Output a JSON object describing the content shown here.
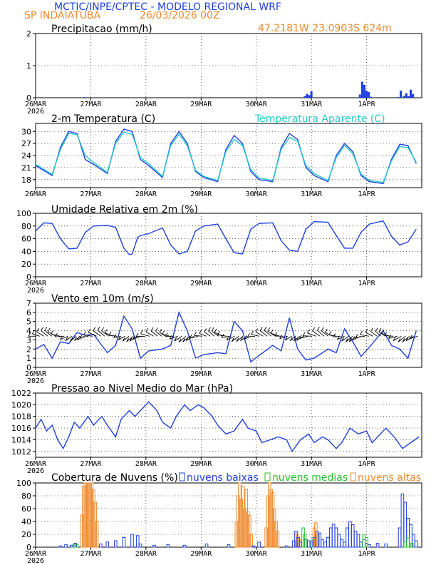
{
  "header": {
    "title": "MCTIC/INPE/CPTEC - MODELO REGIONAL WRF",
    "location": "SP INDAIATUBA",
    "run": "26/03/2026 00Z",
    "coords": "47.2181W 23.0903S 624m"
  },
  "colors": {
    "blue": "#1f3fe0",
    "cyan": "#27c9c9",
    "orange": "#ee8a2e",
    "green": "#22c22a",
    "title": "#1f3fe0",
    "accent": "#ee8a2e"
  },
  "x_ticks": [
    "26MAR",
    "27MAR",
    "28MAR",
    "29MAR",
    "30MAR",
    "31MAR",
    "1APR"
  ],
  "x_year": "2026",
  "chart_data": [
    {
      "type": "bar",
      "title": "Precipitacao (mm/h)",
      "ylim": [
        0,
        2
      ],
      "yticks": [
        0,
        1,
        2
      ],
      "bars_x": [
        0.88,
        4.88,
        4.92,
        4.96,
        5.0,
        5.88,
        5.92,
        5.96,
        6.0,
        6.04,
        6.08,
        6.58,
        6.62,
        6.68,
        6.72,
        6.76,
        6.8,
        6.84
      ],
      "values": [
        0.02,
        0.05,
        0.12,
        0.08,
        0.2,
        0.1,
        0.5,
        0.4,
        0.22,
        0.18,
        0.03,
        0.02,
        0.22,
        0.06,
        0.14,
        0.05,
        0.25,
        0.12
      ]
    },
    {
      "type": "line",
      "title": "2-m Temperatura (C)",
      "legend": [
        "Temperatura Aparente (C)"
      ],
      "ylim": [
        16,
        32
      ],
      "yticks": [
        18,
        21,
        24,
        27,
        30
      ],
      "series": [
        {
          "name": "Temperatura",
          "color": "#1f3fe0",
          "x": [
            0,
            0.3,
            0.45,
            0.6,
            0.75,
            0.9,
            1.05,
            1.3,
            1.45,
            1.6,
            1.75,
            1.9,
            2.05,
            2.3,
            2.45,
            2.6,
            2.75,
            2.9,
            3.05,
            3.3,
            3.45,
            3.6,
            3.75,
            3.9,
            4.05,
            4.3,
            4.45,
            4.6,
            4.75,
            4.9,
            5.05,
            5.3,
            5.45,
            5.6,
            5.75,
            5.9,
            6.05,
            6.3,
            6.45,
            6.6,
            6.75,
            6.9
          ],
          "values": [
            21.5,
            19.0,
            26.0,
            30.0,
            29.5,
            23.0,
            21.8,
            19.5,
            27.5,
            30.6,
            30.0,
            23.0,
            21.5,
            18.5,
            27.0,
            30.0,
            27.0,
            20.0,
            18.5,
            17.5,
            25.5,
            29.0,
            27.0,
            20.0,
            18.0,
            17.5,
            26.0,
            29.5,
            28.0,
            21.0,
            19.0,
            17.5,
            24.0,
            27.0,
            25.0,
            19.0,
            17.5,
            17.0,
            23.0,
            26.8,
            26.5,
            22.0
          ]
        },
        {
          "name": "Temperatura Aparente (C)",
          "color": "#27c9c9",
          "x": [
            0,
            0.3,
            0.45,
            0.6,
            0.75,
            0.9,
            1.05,
            1.3,
            1.45,
            1.6,
            1.75,
            1.9,
            2.05,
            2.3,
            2.45,
            2.6,
            2.75,
            2.9,
            3.05,
            3.3,
            3.45,
            3.6,
            3.75,
            3.9,
            4.05,
            4.3,
            4.45,
            4.6,
            4.75,
            4.9,
            5.05,
            5.3,
            5.45,
            5.6,
            5.75,
            5.9,
            6.05,
            6.3,
            6.45,
            6.6,
            6.75,
            6.9
          ],
          "values": [
            21.8,
            19.3,
            25.5,
            29.5,
            29.2,
            24.0,
            22.3,
            19.8,
            27.0,
            29.8,
            29.3,
            23.5,
            22.0,
            18.8,
            26.5,
            29.3,
            26.5,
            20.3,
            18.8,
            17.8,
            25.0,
            28.0,
            26.5,
            20.5,
            18.4,
            17.8,
            25.5,
            28.5,
            27.5,
            21.5,
            19.5,
            17.8,
            23.5,
            26.5,
            24.5,
            19.4,
            17.8,
            17.3,
            22.6,
            26.2,
            26.0,
            22.3
          ]
        }
      ]
    },
    {
      "type": "line",
      "title": "Umidade Relativa em 2m (%)",
      "ylim": [
        0,
        100
      ],
      "yticks": [
        0,
        20,
        40,
        60,
        80,
        100
      ],
      "series": [
        {
          "name": "Umidade",
          "color": "#1f3fe0",
          "x": [
            0,
            0.15,
            0.3,
            0.45,
            0.6,
            0.75,
            0.9,
            1.05,
            1.3,
            1.45,
            1.6,
            1.7,
            1.75,
            1.85,
            1.9,
            2.05,
            2.3,
            2.45,
            2.6,
            2.75,
            2.9,
            3.05,
            3.3,
            3.45,
            3.6,
            3.75,
            3.9,
            4.05,
            4.3,
            4.45,
            4.6,
            4.75,
            4.9,
            5.05,
            5.3,
            5.45,
            5.6,
            5.75,
            5.9,
            6.05,
            6.3,
            6.45,
            6.6,
            6.75,
            6.9
          ],
          "values": [
            72,
            85,
            84,
            60,
            44,
            45,
            70,
            80,
            81,
            78,
            45,
            35,
            36,
            62,
            65,
            68,
            77,
            50,
            36,
            40,
            72,
            80,
            83,
            60,
            38,
            36,
            75,
            84,
            85,
            57,
            42,
            40,
            75,
            87,
            86,
            65,
            45,
            45,
            70,
            83,
            88,
            64,
            50,
            55,
            75
          ]
        }
      ]
    },
    {
      "type": "line",
      "title": "Vento em 10m (m/s)",
      "ylim": [
        0,
        7
      ],
      "yticks": [
        0,
        1,
        2,
        3,
        4,
        5,
        6,
        7
      ],
      "barb_row_value": 3.4,
      "series": [
        {
          "name": "Vento",
          "color": "#1f3fe0",
          "x": [
            0,
            0.15,
            0.3,
            0.45,
            0.6,
            0.75,
            0.9,
            1.05,
            1.3,
            1.45,
            1.6,
            1.75,
            1.9,
            2.05,
            2.3,
            2.45,
            2.6,
            2.75,
            2.9,
            3.05,
            3.3,
            3.45,
            3.6,
            3.75,
            3.9,
            4.05,
            4.3,
            4.45,
            4.6,
            4.75,
            4.9,
            5.05,
            5.3,
            5.45,
            5.6,
            5.75,
            5.9,
            6.05,
            6.3,
            6.45,
            6.6,
            6.75,
            6.9
          ],
          "values": [
            2.0,
            2.5,
            1.0,
            2.8,
            2.6,
            3.8,
            3.5,
            3.6,
            1.6,
            2.4,
            5.6,
            4.2,
            1.0,
            1.8,
            2.0,
            2.4,
            6.0,
            4.0,
            1.0,
            1.4,
            1.6,
            1.5,
            5.0,
            4.0,
            0.6,
            1.3,
            2.4,
            1.8,
            5.4,
            2.0,
            0.8,
            1.0,
            2.0,
            1.6,
            4.2,
            2.8,
            1.2,
            2.2,
            4.0,
            2.4,
            2.0,
            1.0,
            4.0
          ]
        }
      ]
    },
    {
      "type": "line",
      "title": "Pressao ao Nivel Medio do Mar (hPa)",
      "ylim": [
        1011,
        1022
      ],
      "yticks": [
        1012,
        1014,
        1016,
        1018,
        1020,
        1022
      ],
      "series": [
        {
          "name": "Pressao",
          "color": "#1f3fe0",
          "x": [
            0,
            0.1,
            0.2,
            0.3,
            0.4,
            0.5,
            0.6,
            0.7,
            0.8,
            0.95,
            1.05,
            1.2,
            1.3,
            1.45,
            1.55,
            1.7,
            1.8,
            1.95,
            2.05,
            2.2,
            2.3,
            2.45,
            2.55,
            2.7,
            2.8,
            2.95,
            3.05,
            3.2,
            3.3,
            3.45,
            3.6,
            3.75,
            3.85,
            4.0,
            4.1,
            4.25,
            4.4,
            4.55,
            4.65,
            4.8,
            4.95,
            5.05,
            5.2,
            5.3,
            5.45,
            5.55,
            5.7,
            5.85,
            6.0,
            6.1,
            6.25,
            6.35,
            6.5,
            6.65,
            6.8,
            6.95
          ],
          "values": [
            1016.0,
            1017.5,
            1015.5,
            1016.5,
            1014.0,
            1012.5,
            1014.5,
            1017.0,
            1016.0,
            1018.0,
            1016.5,
            1018.0,
            1016.5,
            1014.5,
            1017.5,
            1019.0,
            1018.0,
            1019.5,
            1020.5,
            1019.0,
            1017.0,
            1016.0,
            1018.0,
            1020.0,
            1019.0,
            1020.0,
            1019.5,
            1018.0,
            1016.5,
            1015.0,
            1015.5,
            1017.5,
            1016.0,
            1015.5,
            1013.5,
            1014.0,
            1014.5,
            1014.0,
            1012.0,
            1014.0,
            1015.0,
            1013.5,
            1014.5,
            1014.0,
            1012.5,
            1013.5,
            1016.0,
            1015.0,
            1015.5,
            1013.5,
            1015.0,
            1016.0,
            1014.5,
            1012.5,
            1013.5,
            1014.5
          ]
        }
      ]
    },
    {
      "type": "bar",
      "title": "Cobertura de Nuvens (%)",
      "legend": [
        "nuvens baixas",
        "nuvens medias",
        "nuvens altas"
      ],
      "ylim": [
        0,
        100
      ],
      "yticks": [
        0,
        20,
        40,
        60,
        80,
        100
      ],
      "series": [
        {
          "name": "nuvens altas",
          "color": "#ee8a2e",
          "x": [
            0.84,
            0.87,
            0.9,
            0.93,
            0.96,
            0.99,
            1.02,
            1.05,
            1.08,
            1.11,
            3.64,
            3.67,
            3.7,
            3.73,
            3.76,
            3.79,
            3.82,
            3.85,
            3.88,
            3.91,
            4.18,
            4.21,
            4.24,
            4.27,
            4.3,
            4.33,
            4.36,
            4.39,
            4.75,
            4.79,
            5.05,
            5.08,
            5.12
          ],
          "values": [
            50,
            95,
            100,
            100,
            100,
            100,
            100,
            90,
            70,
            40,
            40,
            80,
            100,
            75,
            95,
            60,
            90,
            55,
            50,
            20,
            30,
            80,
            100,
            90,
            85,
            60,
            40,
            25,
            20,
            12,
            30,
            38,
            20
          ]
        },
        {
          "name": "nuvens baixas",
          "color": "#1f3fe0",
          "x": [
            0.45,
            0.55,
            0.65,
            0.72,
            1.18,
            1.3,
            1.45,
            1.6,
            1.75,
            1.85,
            1.9,
            2.15,
            2.4,
            2.7,
            3.1,
            3.5,
            3.95,
            4.05,
            4.55,
            4.68,
            4.72,
            4.76,
            4.8,
            4.9,
            4.95,
            5.0,
            5.05,
            5.1,
            5.15,
            5.2,
            5.25,
            5.3,
            5.35,
            5.4,
            5.45,
            5.5,
            5.55,
            5.6,
            5.65,
            5.7,
            5.75,
            5.8,
            5.85,
            5.9,
            5.95,
            6.0,
            6.05,
            6.2,
            6.35,
            6.6,
            6.65,
            6.7,
            6.75,
            6.8,
            6.85,
            6.9
          ],
          "values": [
            2,
            4,
            3,
            6,
            5,
            8,
            10,
            15,
            20,
            18,
            5,
            3,
            4,
            3,
            5,
            4,
            2,
            8,
            2,
            10,
            25,
            15,
            8,
            12,
            10,
            8,
            15,
            25,
            22,
            12,
            8,
            15,
            30,
            36,
            30,
            20,
            12,
            8,
            30,
            40,
            35,
            25,
            20,
            8,
            12,
            5,
            4,
            6,
            5,
            30,
            83,
            70,
            45,
            35,
            20,
            10
          ]
        },
        {
          "name": "nuvens medias",
          "color": "#22c22a",
          "x": [
            0.7,
            0.75,
            4.85,
            4.88,
            5.02,
            5.95,
            6.0,
            6.7,
            6.75,
            6.82
          ],
          "values": [
            5,
            4,
            30,
            20,
            12,
            20,
            15,
            8,
            14,
            6
          ]
        }
      ]
    }
  ]
}
